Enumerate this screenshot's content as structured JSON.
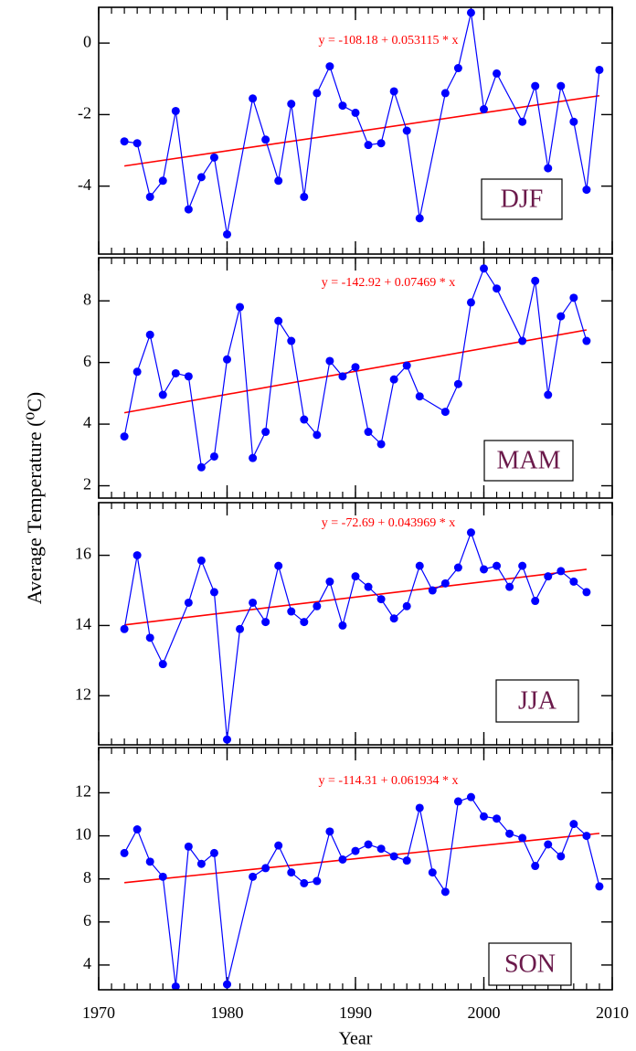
{
  "figure": {
    "ylabel": "Average Temperature (⁰C)"
  },
  "chart_data": [
    {
      "type": "line",
      "x": [
        1972,
        1973,
        1974,
        1975,
        1976,
        1977,
        1978,
        1979,
        1980,
        1982,
        1983,
        1984,
        1985,
        1986,
        1987,
        1988,
        1989,
        1990,
        1991,
        1992,
        1993,
        1994,
        1995,
        1997,
        1998,
        1999,
        2000,
        2001,
        2003,
        2004,
        2005,
        2006,
        2007,
        2008,
        2009
      ],
      "series": [
        {
          "name": "DJF",
          "color": "#0000ff",
          "values": [
            -2.75,
            -2.8,
            -4.3,
            -3.85,
            -1.9,
            -4.65,
            -3.75,
            -3.2,
            -5.35,
            -1.55,
            -2.7,
            -3.85,
            -1.7,
            -4.3,
            -1.4,
            -0.65,
            -1.75,
            -1.95,
            -2.85,
            -2.8,
            -1.35,
            -2.45,
            -4.9,
            -1.4,
            -0.7,
            0.85,
            -1.85,
            -0.85,
            -2.2,
            -1.2,
            -3.5,
            -1.2,
            -2.2,
            -4.1,
            -0.75
          ]
        }
      ],
      "trend": {
        "label": "y = -108.18 + 0.053115 * x",
        "intercept": -108.18,
        "slope": 0.053115,
        "color": "#ff0000"
      },
      "xlim": [
        1970,
        2010
      ],
      "xticks": [
        1970,
        1980,
        1990,
        2000,
        2010
      ],
      "ylim": [
        -5.9,
        1.0
      ],
      "yticks": [
        -4,
        -2,
        0
      ]
    },
    {
      "type": "line",
      "x": [
        1972,
        1973,
        1974,
        1975,
        1976,
        1977,
        1978,
        1979,
        1980,
        1981,
        1982,
        1983,
        1984,
        1985,
        1986,
        1987,
        1988,
        1989,
        1990,
        1991,
        1992,
        1993,
        1994,
        1995,
        1997,
        1998,
        1999,
        2000,
        2001,
        2003,
        2004,
        2005,
        2006,
        2007,
        2008
      ],
      "series": [
        {
          "name": "MAM",
          "color": "#0000ff",
          "values": [
            3.6,
            5.7,
            6.9,
            4.95,
            5.65,
            5.55,
            2.6,
            2.95,
            6.1,
            7.8,
            2.9,
            3.75,
            7.35,
            6.7,
            4.15,
            3.65,
            6.05,
            5.55,
            5.85,
            3.75,
            3.35,
            5.45,
            5.9,
            4.9,
            4.4,
            5.3,
            7.95,
            9.05,
            8.4,
            6.7,
            8.65,
            4.95,
            7.5,
            8.1,
            6.7
          ]
        }
      ],
      "trend": {
        "label": "y = -142.92 + 0.07469 * x",
        "intercept": -142.92,
        "slope": 0.07469,
        "color": "#ff0000"
      },
      "xlim": [
        1970,
        2010
      ],
      "xticks": [
        1970,
        1980,
        1990,
        2000,
        2010
      ],
      "ylim": [
        1.6,
        9.4
      ],
      "yticks": [
        2,
        4,
        6,
        8
      ]
    },
    {
      "type": "line",
      "x": [
        1972,
        1973,
        1974,
        1975,
        1977,
        1978,
        1979,
        1980,
        1981,
        1982,
        1983,
        1984,
        1985,
        1986,
        1987,
        1988,
        1989,
        1990,
        1991,
        1992,
        1993,
        1994,
        1995,
        1996,
        1997,
        1998,
        1999,
        2000,
        2001,
        2002,
        2003,
        2004,
        2005,
        2006,
        2007,
        2008
      ],
      "series": [
        {
          "name": "JJA",
          "color": "#0000ff",
          "values": [
            13.9,
            16.0,
            13.65,
            12.9,
            14.65,
            15.85,
            14.95,
            10.75,
            13.9,
            14.65,
            14.1,
            15.7,
            14.4,
            14.1,
            14.55,
            15.25,
            14.0,
            15.4,
            15.1,
            14.75,
            14.2,
            14.55,
            15.7,
            15.0,
            15.2,
            15.65,
            16.65,
            15.6,
            15.7,
            15.1,
            15.7,
            14.7,
            15.4,
            15.55,
            15.25,
            14.95
          ]
        }
      ],
      "trend": {
        "label": "y = -72.69 + 0.043969 * x",
        "intercept": -72.69,
        "slope": 0.043969,
        "color": "#ff0000"
      },
      "xlim": [
        1970,
        2010
      ],
      "xticks": [
        1970,
        1980,
        1990,
        2000,
        2010
      ],
      "ylim": [
        10.6,
        17.5
      ],
      "yticks": [
        12,
        14,
        16
      ]
    },
    {
      "type": "line",
      "x": [
        1972,
        1973,
        1974,
        1975,
        1976,
        1977,
        1978,
        1979,
        1980,
        1982,
        1983,
        1984,
        1985,
        1986,
        1987,
        1988,
        1989,
        1990,
        1991,
        1992,
        1993,
        1994,
        1995,
        1996,
        1997,
        1998,
        1999,
        2000,
        2001,
        2002,
        2003,
        2004,
        2005,
        2006,
        2007,
        2008,
        2009
      ],
      "series": [
        {
          "name": "SON",
          "color": "#0000ff",
          "values": [
            9.2,
            10.3,
            8.8,
            8.1,
            3.0,
            9.5,
            8.7,
            9.2,
            3.1,
            8.1,
            8.5,
            9.55,
            8.3,
            7.8,
            7.9,
            10.2,
            8.9,
            9.3,
            9.6,
            9.4,
            9.05,
            8.85,
            11.3,
            8.3,
            7.4,
            11.6,
            11.8,
            10.9,
            10.8,
            10.1,
            9.9,
            8.6,
            9.6,
            9.05,
            10.55,
            10.0,
            7.65
          ]
        }
      ],
      "trend": {
        "label": "y = -114.31 + 0.061934 * x",
        "intercept": -114.31,
        "slope": 0.061934,
        "color": "#ff0000"
      },
      "xlim": [
        1970,
        2010
      ],
      "xticks": [
        1970,
        1980,
        1990,
        2000,
        2010
      ],
      "ylim": [
        2.85,
        14.1
      ],
      "yticks": [
        4,
        6,
        8,
        10,
        12
      ],
      "xlabel": "Year"
    }
  ]
}
